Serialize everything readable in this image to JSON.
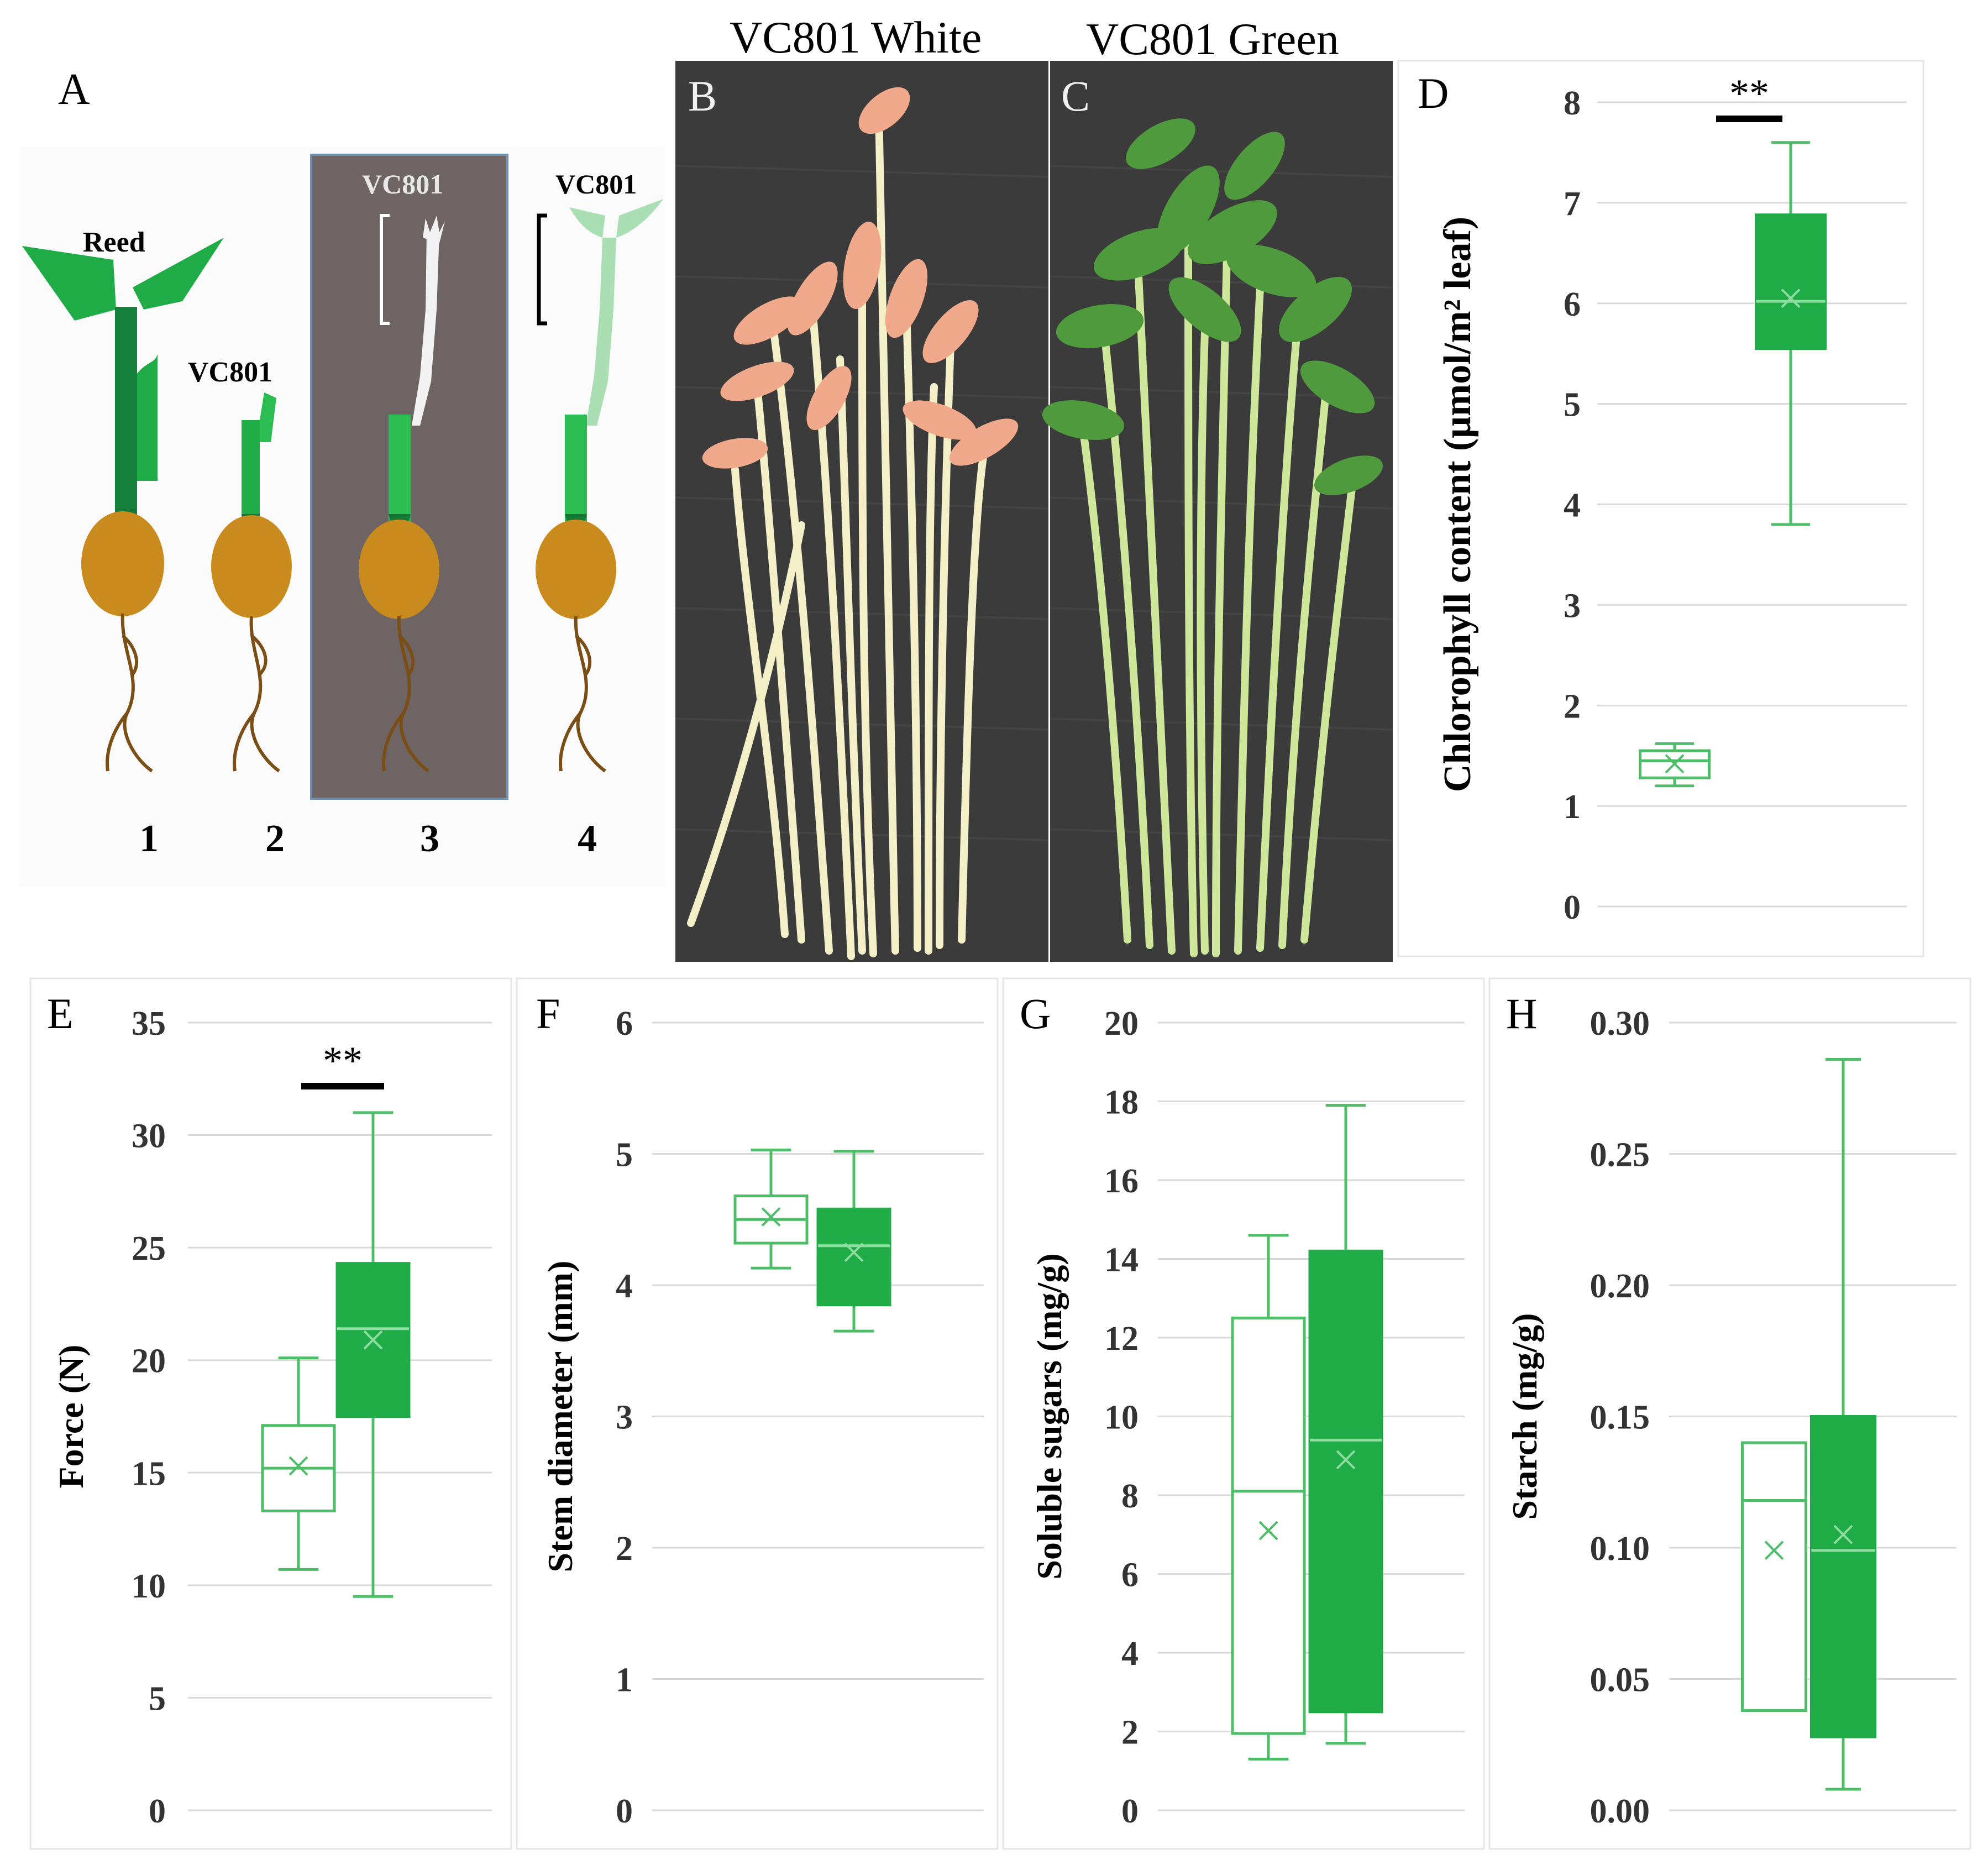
{
  "colors": {
    "green": "#1fab46",
    "green_light": "#4dbd68",
    "seed": "#c98b1e",
    "root": "#7a4e15",
    "dark_bg": "#6e6464",
    "white_stem": "#f5f5f5",
    "pale_green": "#a9dfb3",
    "photo_bg": "#3b3b3b"
  },
  "panels": {
    "A": {
      "letter": "A",
      "plant_labels": [
        "Reed",
        "VC801",
        "VC801",
        "VC801"
      ],
      "numbers": [
        "1",
        "2",
        "3",
        "4"
      ]
    },
    "B": {
      "letter": "B",
      "title": "VC801 White"
    },
    "C": {
      "letter": "C",
      "title": "VC801 Green"
    }
  },
  "chart_data": [
    {
      "panel": "D",
      "type": "box",
      "ylabel": "Chlorophyll content (μmol/m² leaf)",
      "ylim": [
        0,
        8
      ],
      "yticks": [
        "0",
        "1",
        "2",
        "3",
        "4",
        "5",
        "6",
        "7",
        "8"
      ],
      "significance": "**",
      "boxes": [
        {
          "group": "white",
          "min": 1.2,
          "q1": 1.28,
          "median": 1.45,
          "q3": 1.55,
          "max": 1.62,
          "mean": 1.42
        },
        {
          "group": "green",
          "min": 3.8,
          "q1": 5.55,
          "median": 6.02,
          "q3": 6.88,
          "max": 7.6,
          "mean": 6.05
        }
      ]
    },
    {
      "panel": "E",
      "type": "box",
      "ylabel": "Force (N)",
      "ylim": [
        0,
        35
      ],
      "yticks": [
        "0",
        "5",
        "10",
        "15",
        "20",
        "25",
        "30",
        "35"
      ],
      "significance": "**",
      "boxes": [
        {
          "group": "white",
          "min": 10.7,
          "q1": 13.3,
          "median": 15.2,
          "q3": 17.1,
          "max": 20.1,
          "mean": 15.3
        },
        {
          "group": "green",
          "min": 9.5,
          "q1": 17.5,
          "median": 21.4,
          "q3": 24.3,
          "max": 31.0,
          "mean": 20.9
        }
      ]
    },
    {
      "panel": "F",
      "type": "box",
      "ylabel": "Stem diameter (mm)",
      "ylim": [
        0,
        6
      ],
      "yticks": [
        "0",
        "1",
        "2",
        "3",
        "4",
        "5",
        "6"
      ],
      "significance": "",
      "boxes": [
        {
          "group": "white",
          "min": 4.13,
          "q1": 4.32,
          "median": 4.5,
          "q3": 4.68,
          "max": 5.03,
          "mean": 4.52
        },
        {
          "group": "green",
          "min": 3.65,
          "q1": 3.85,
          "median": 4.3,
          "q3": 4.58,
          "max": 5.02,
          "mean": 4.25
        }
      ]
    },
    {
      "panel": "G",
      "type": "box",
      "ylabel": "Soluble sugars (mg/g)",
      "ylim": [
        0,
        20
      ],
      "yticks": [
        "0",
        "2",
        "4",
        "6",
        "8",
        "10",
        "12",
        "14",
        "16",
        "18",
        "20"
      ],
      "significance": "",
      "boxes": [
        {
          "group": "white",
          "min": 1.3,
          "q1": 1.95,
          "median": 8.1,
          "q3": 12.5,
          "max": 14.6,
          "mean": 7.1
        },
        {
          "group": "green",
          "min": 1.7,
          "q1": 2.5,
          "median": 9.4,
          "q3": 14.2,
          "max": 17.9,
          "mean": 8.9
        }
      ]
    },
    {
      "panel": "H",
      "type": "box",
      "ylabel": "Starch (mg/g)",
      "ylim": [
        0,
        0.3
      ],
      "yticks": [
        "0.00",
        "0.05",
        "0.10",
        "0.15",
        "0.20",
        "0.25",
        "0.30"
      ],
      "significance": "",
      "boxes": [
        {
          "group": "white",
          "min": 0.038,
          "q1": 0.038,
          "median": 0.118,
          "q3": 0.14,
          "max": 0.14,
          "mean": 0.099
        },
        {
          "group": "green",
          "min": 0.008,
          "q1": 0.028,
          "median": 0.099,
          "q3": 0.15,
          "max": 0.286,
          "mean": 0.105
        }
      ]
    }
  ]
}
